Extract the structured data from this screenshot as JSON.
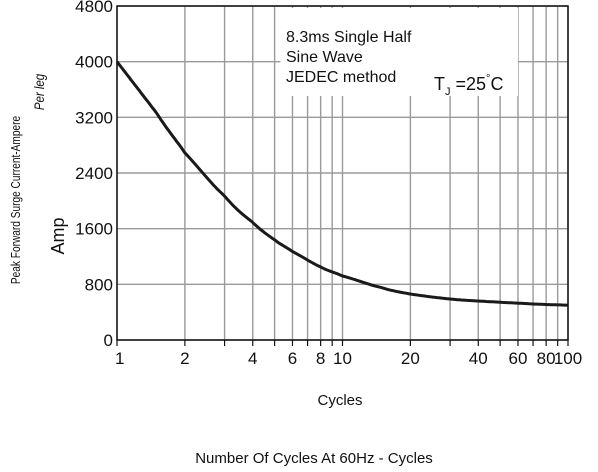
{
  "chart_data": {
    "type": "line",
    "x_scale": "log",
    "xlim": [
      1,
      100
    ],
    "ylim": [
      0,
      4800
    ],
    "x_ticks": [
      1,
      2,
      4,
      6,
      8,
      10,
      20,
      40,
      60,
      80,
      100
    ],
    "x_tick_labels": [
      "1",
      "2",
      "4",
      "6",
      "8",
      "10",
      "20",
      "40",
      "60",
      "80",
      "100"
    ],
    "y_ticks": [
      0,
      800,
      1600,
      2400,
      3200,
      4000,
      4800
    ],
    "y_tick_labels": [
      "0",
      "800",
      "1600",
      "2400",
      "3200",
      "4000",
      "4800"
    ],
    "xlabel": "Cycles",
    "caption": "Number Of Cycles At 60Hz - Cycles",
    "ylabel": "Amp",
    "ylabel_outer": "Peak Forward Surge Current-Ampere",
    "ylabel_inner": "Per leg",
    "annotation_lines": [
      "8.3ms Single Half",
      "Sine Wave",
      "JEDEC method"
    ],
    "temperature_label": {
      "base": "T",
      "sub": "J",
      "rest": " =25",
      "sup": "°",
      "unit": "C"
    },
    "grid": true,
    "series": [
      {
        "x": [
          1,
          1.5,
          2,
          3,
          4,
          5,
          6,
          8,
          10,
          15,
          20,
          30,
          40,
          60,
          80,
          100
        ],
        "y": [
          4000,
          3260,
          2690,
          2070,
          1690,
          1440,
          1270,
          1050,
          920,
          750,
          660,
          590,
          560,
          530,
          510,
          500
        ]
      }
    ],
    "colors": {
      "curve": "#1a1a1a",
      "grid": "#9a9a9a",
      "axis": "#111111"
    }
  }
}
